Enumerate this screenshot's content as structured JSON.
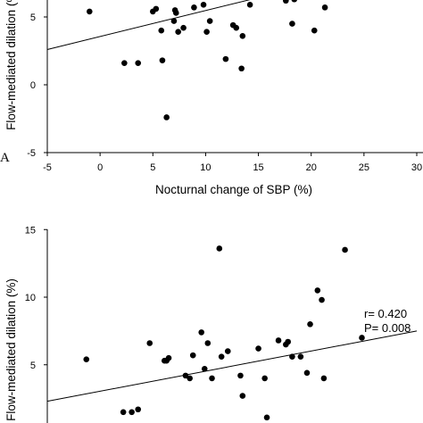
{
  "chart_data": [
    {
      "type": "scatter",
      "panel_label": "A",
      "xlabel": "Nocturnal change of SBP (%)",
      "ylabel": "Flow-mediated dilation (%)",
      "xlim": [
        -5,
        30
      ],
      "ylim": [
        -5,
        10
      ],
      "x_ticks": [
        -5,
        0,
        5,
        10,
        15,
        20,
        25,
        30
      ],
      "x_tick_labels": [
        "-5",
        "0",
        "5",
        "10",
        "15",
        "20",
        "25",
        "30"
      ],
      "y_ticks": [
        -5,
        0,
        5
      ],
      "y_tick_labels": [
        "-5",
        "0",
        "5"
      ],
      "trend_line": {
        "x": [
          -5,
          30
        ],
        "y": [
          2.6,
          9.3
        ]
      },
      "points": [
        {
          "x": -1.0,
          "y": 5.4
        },
        {
          "x": 2.3,
          "y": 1.6
        },
        {
          "x": 3.6,
          "y": 1.6
        },
        {
          "x": 5.0,
          "y": 5.4
        },
        {
          "x": 5.3,
          "y": 5.6
        },
        {
          "x": 5.8,
          "y": 4.0
        },
        {
          "x": 5.9,
          "y": 1.8
        },
        {
          "x": 6.3,
          "y": -2.4
        },
        {
          "x": 7.0,
          "y": 4.7
        },
        {
          "x": 7.1,
          "y": 5.5
        },
        {
          "x": 7.2,
          "y": 5.3
        },
        {
          "x": 7.4,
          "y": 3.9
        },
        {
          "x": 7.9,
          "y": 4.2
        },
        {
          "x": 8.9,
          "y": 5.7
        },
        {
          "x": 9.8,
          "y": 5.9
        },
        {
          "x": 10.1,
          "y": 3.9
        },
        {
          "x": 10.4,
          "y": 4.7
        },
        {
          "x": 11.0,
          "y": 6.7
        },
        {
          "x": 11.9,
          "y": 1.9
        },
        {
          "x": 12.6,
          "y": 4.4
        },
        {
          "x": 12.9,
          "y": 4.2
        },
        {
          "x": 13.4,
          "y": 1.2
        },
        {
          "x": 13.5,
          "y": 3.6
        },
        {
          "x": 14.2,
          "y": 5.9
        },
        {
          "x": 17.6,
          "y": 6.2
        },
        {
          "x": 18.2,
          "y": 4.5
        },
        {
          "x": 18.4,
          "y": 6.3
        },
        {
          "x": 20.3,
          "y": 4.0
        },
        {
          "x": 21.3,
          "y": 5.7
        }
      ]
    },
    {
      "type": "scatter",
      "ylabel": "Flow-mediated dilation (%)",
      "xlim": [
        -5,
        30
      ],
      "ylim": [
        0,
        15
      ],
      "y_ticks": [
        5,
        10,
        15
      ],
      "y_tick_labels": [
        "5",
        "10",
        "15"
      ],
      "annotations": [
        "r= 0.420",
        "P= 0.008"
      ],
      "trend_line": {
        "x": [
          -5,
          30
        ],
        "y": [
          2.3,
          7.5
        ]
      },
      "points": [
        {
          "x": -1.3,
          "y": 5.4
        },
        {
          "x": 2.2,
          "y": 1.5
        },
        {
          "x": 3.0,
          "y": 1.5
        },
        {
          "x": 3.6,
          "y": 1.7
        },
        {
          "x": 4.7,
          "y": 6.6
        },
        {
          "x": 6.1,
          "y": 5.3
        },
        {
          "x": 6.3,
          "y": 5.3
        },
        {
          "x": 6.5,
          "y": 5.5
        },
        {
          "x": 8.1,
          "y": 4.2
        },
        {
          "x": 8.5,
          "y": 4.0
        },
        {
          "x": 8.8,
          "y": 5.7
        },
        {
          "x": 9.6,
          "y": 7.4
        },
        {
          "x": 9.9,
          "y": 4.7
        },
        {
          "x": 10.2,
          "y": 6.6
        },
        {
          "x": 10.6,
          "y": 4.0
        },
        {
          "x": 11.3,
          "y": 13.6
        },
        {
          "x": 11.5,
          "y": 5.6
        },
        {
          "x": 12.1,
          "y": 6.0
        },
        {
          "x": 13.3,
          "y": 4.2
        },
        {
          "x": 13.5,
          "y": 2.7
        },
        {
          "x": 15.0,
          "y": 6.2
        },
        {
          "x": 15.6,
          "y": 4.0
        },
        {
          "x": 15.8,
          "y": 1.1
        },
        {
          "x": 16.9,
          "y": 6.8
        },
        {
          "x": 17.6,
          "y": 6.5
        },
        {
          "x": 17.8,
          "y": 6.7
        },
        {
          "x": 18.2,
          "y": 5.6
        },
        {
          "x": 19.0,
          "y": 5.6
        },
        {
          "x": 19.6,
          "y": 4.4
        },
        {
          "x": 19.9,
          "y": 8.0
        },
        {
          "x": 20.6,
          "y": 10.5
        },
        {
          "x": 21.0,
          "y": 9.8
        },
        {
          "x": 21.2,
          "y": 4.0
        },
        {
          "x": 23.2,
          "y": 13.5
        },
        {
          "x": 24.8,
          "y": 7.0
        }
      ]
    }
  ]
}
